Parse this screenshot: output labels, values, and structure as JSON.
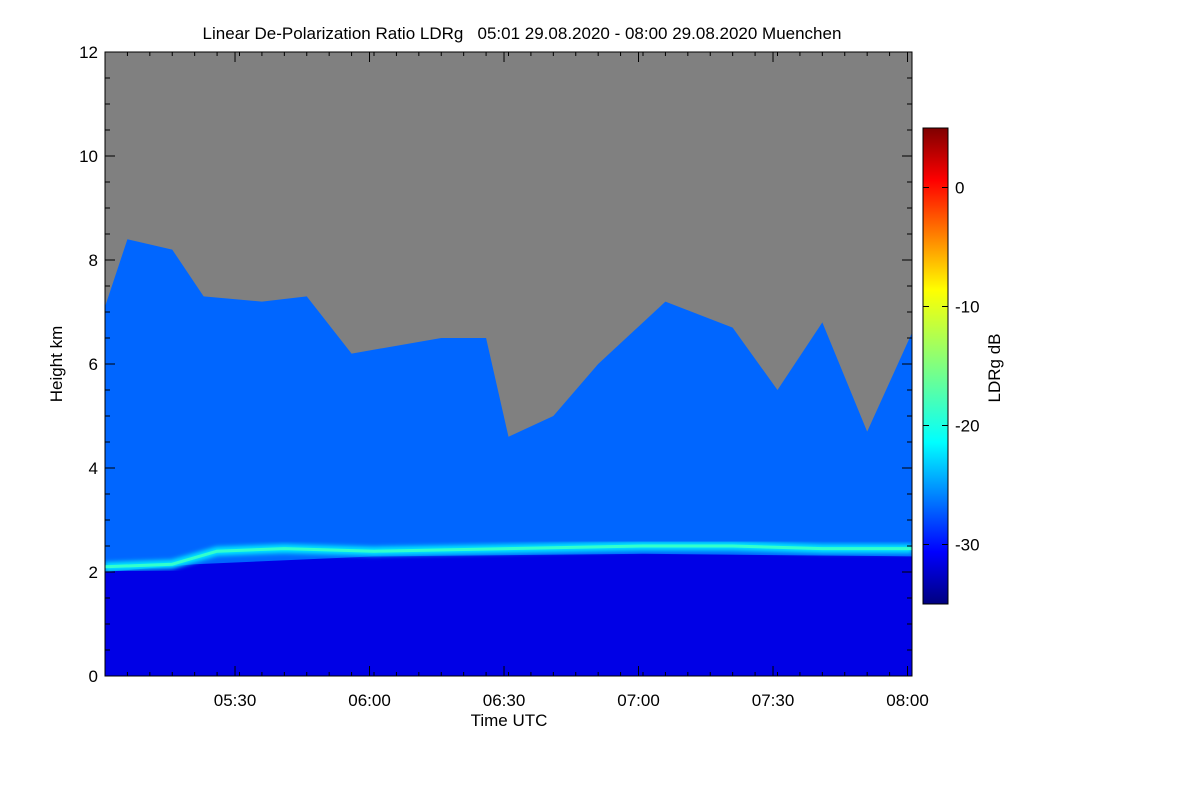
{
  "chart_data": {
    "type": "heatmap",
    "title": "Linear De-Polarization Ratio LDRg   05:01 29.08.2020 - 08:00 29.08.2020 Muenchen",
    "xlabel": "Time UTC",
    "ylabel": "Height km",
    "colorbar_label": "LDRg dB",
    "x_range": [
      "05:01",
      "08:01"
    ],
    "x_ticks": [
      "05:30",
      "06:00",
      "06:30",
      "07:00",
      "07:30",
      "08:00"
    ],
    "y_range": [
      0,
      12
    ],
    "y_ticks": [
      "0",
      "2",
      "4",
      "6",
      "8",
      "10",
      "12"
    ],
    "colorbar_range": [
      -35,
      5
    ],
    "colorbar_ticks": [
      "0",
      "-10",
      "-20",
      "-30"
    ],
    "colormap": "jet",
    "no_signal_color": "#808080",
    "layers": [
      {
        "name": "near-surface",
        "ldr_db": -31,
        "top_km": [
          [
            0,
            2.0
          ],
          [
            20,
            2.15
          ],
          [
            60,
            2.3
          ],
          [
            120,
            2.35
          ],
          [
            180,
            2.3
          ]
        ]
      },
      {
        "name": "aerosol layer top",
        "ldr_db": -21,
        "height_km": [
          [
            0,
            2.1
          ],
          [
            15,
            2.15
          ],
          [
            25,
            2.4
          ],
          [
            40,
            2.45
          ],
          [
            60,
            2.4
          ],
          [
            120,
            2.5
          ],
          [
            140,
            2.5
          ],
          [
            160,
            2.45
          ],
          [
            180,
            2.45
          ]
        ]
      },
      {
        "name": "cirrus",
        "ldr_db": -26,
        "top_km": [
          [
            0,
            7.1
          ],
          [
            5,
            8.4
          ],
          [
            15,
            8.2
          ],
          [
            22,
            7.3
          ],
          [
            35,
            7.2
          ],
          [
            45,
            7.3
          ],
          [
            55,
            6.2
          ],
          [
            75,
            6.5
          ],
          [
            85,
            6.5
          ],
          [
            90,
            4.6
          ],
          [
            100,
            5.0
          ],
          [
            110,
            6.0
          ],
          [
            125,
            7.2
          ],
          [
            140,
            6.7
          ],
          [
            150,
            5.5
          ],
          [
            160,
            6.8
          ],
          [
            170,
            4.7
          ],
          [
            180,
            6.6
          ]
        ]
      }
    ],
    "grid": false
  }
}
